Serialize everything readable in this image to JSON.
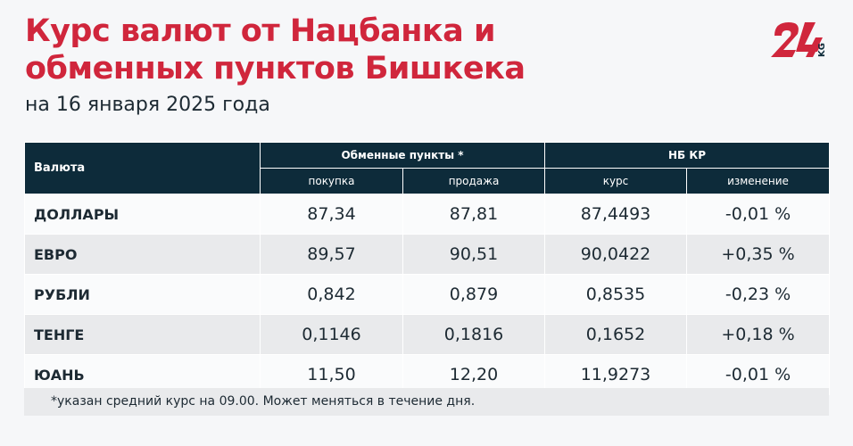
{
  "title_line1": "Курс валют от Нацбанка и",
  "title_line2": "обменных пунктов Бишкека",
  "subtitle": "на 16 января 2025 года",
  "logo": {
    "text": "24",
    "suffix": "KG",
    "color": "#d0263c",
    "suffix_color": "#0d2b3a"
  },
  "table": {
    "header": {
      "currency": "Валюта",
      "exchange": "Обменные пункты *",
      "nbkr": "НБ КР",
      "buy": "покупка",
      "sell": "продажа",
      "rate": "курс",
      "change": "изменение"
    },
    "rows": [
      {
        "name": "ДОЛЛАРЫ",
        "buy": "87,34",
        "sell": "87,81",
        "rate": "87,4493",
        "change": "-0,01 %"
      },
      {
        "name": "ЕВРО",
        "buy": "89,57",
        "sell": "90,51",
        "rate": "90,0422",
        "change": "+0,35 %"
      },
      {
        "name": "РУБЛИ",
        "buy": "0,842",
        "sell": "0,879",
        "rate": "0,8535",
        "change": "-0,23 %"
      },
      {
        "name": "ТЕНГЕ",
        "buy": "0,1146",
        "sell": "0,1816",
        "rate": "0,1652",
        "change": "+0,18 %"
      },
      {
        "name": "ЮАНЬ",
        "buy": "11,50",
        "sell": "12,20",
        "rate": "11,9273",
        "change": "-0,01 %"
      }
    ]
  },
  "footnote": "*указан средний курс на 09.00. Может меняться в течение дня."
}
